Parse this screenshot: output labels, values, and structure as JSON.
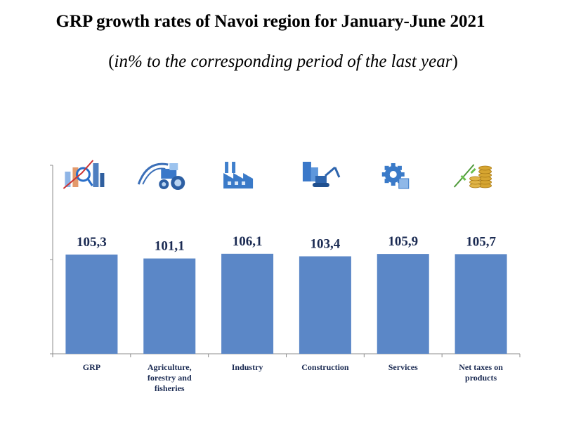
{
  "header": {
    "title": "GRP growth rates of Navoi region for January-June 2021",
    "subtitle_open": "(",
    "subtitle_text": "in% to the corresponding period of the last year",
    "subtitle_close": ")"
  },
  "colors": {
    "bar": "#5b87c7",
    "axis": "#8c8c8c",
    "label": "#1a2a52"
  },
  "chart_data": {
    "type": "bar",
    "title": "GRP growth rates of Navoi region for January-June 2021",
    "subtitle": "(in% to the corresponding period of the last year)",
    "categories": [
      [
        "GRP"
      ],
      [
        "Agriculture,",
        "forestry and",
        "fisheries"
      ],
      [
        "Industry"
      ],
      [
        "Construction"
      ],
      [
        "Services"
      ],
      [
        "Net taxes on",
        "products"
      ]
    ],
    "values": [
      105.3,
      101.1,
      106.1,
      103.4,
      105.9,
      105.7
    ],
    "value_labels": [
      "105,3",
      "101,1",
      "106,1",
      "103,4",
      "105,9",
      "105,7"
    ],
    "icons": [
      "growth-chart-icon",
      "tractor-icon",
      "factory-icon",
      "excavator-icon",
      "gear-services-icon",
      "coins-icon"
    ],
    "xlabel": "",
    "ylabel": "",
    "ylim": [
      0,
      200
    ],
    "grid": false
  }
}
